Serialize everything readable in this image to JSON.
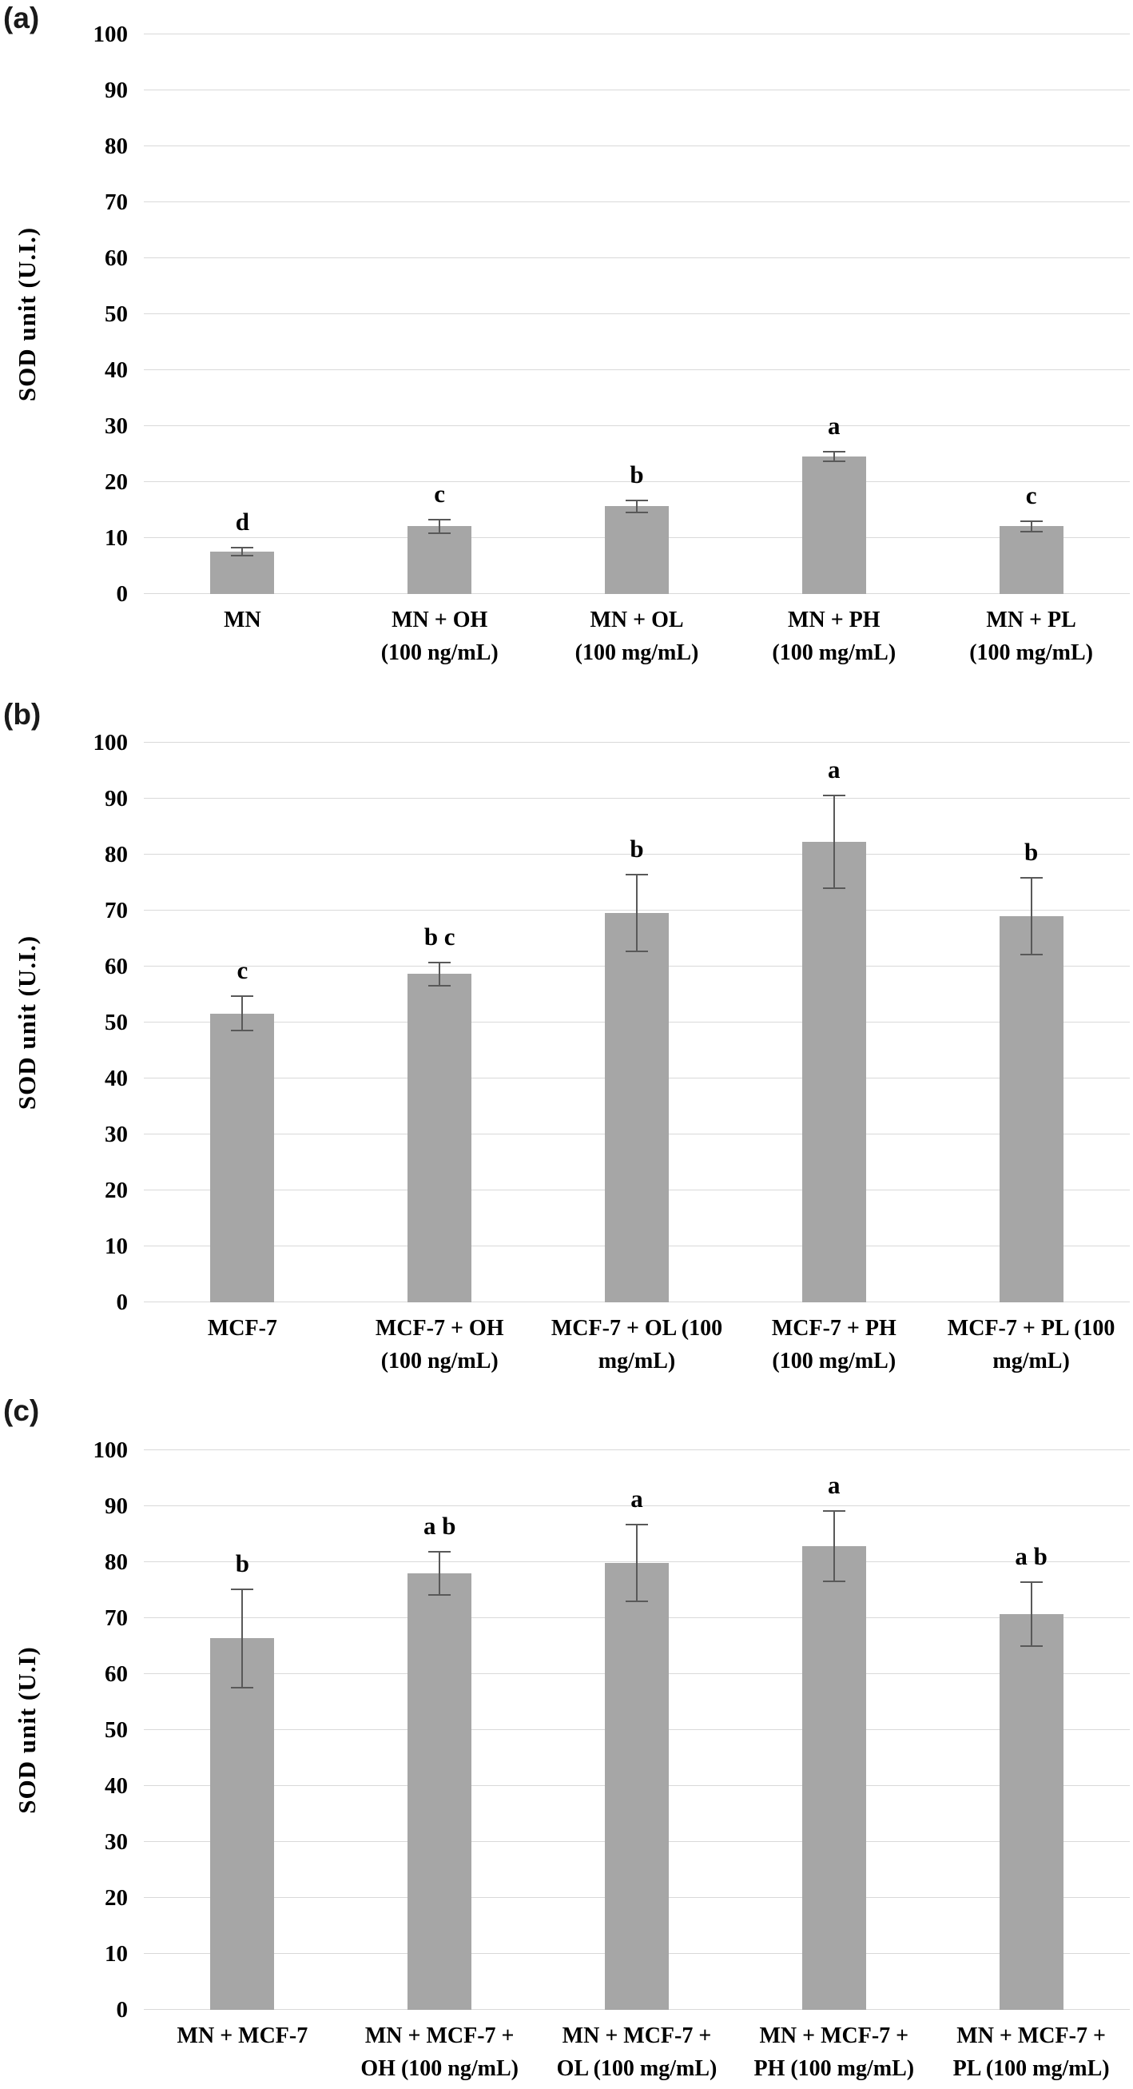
{
  "figure": {
    "panels": [
      {
        "label": "(a)",
        "ylabel": "SOD unit  (U.I.)"
      },
      {
        "label": "(b)",
        "ylabel": "SOD unit  (U.I.)"
      },
      {
        "label": "(c)",
        "ylabel": "SOD unit (U.I)"
      }
    ]
  },
  "colors": {
    "bar": "#a6a6a6",
    "gridline": "#d9d9d9",
    "baseline": "#d9d9d9",
    "error_bar": "#595959",
    "text": "#000000"
  },
  "chart_data": [
    {
      "type": "bar",
      "title": "",
      "xlabel": "",
      "ylabel": "SOD unit  (U.I.)",
      "ylim": [
        0,
        100
      ],
      "yticks": [
        0,
        10,
        20,
        30,
        40,
        50,
        60,
        70,
        80,
        90,
        100
      ],
      "grid": true,
      "legend": "none",
      "categories": [
        "MN",
        "MN + OH (100 ng/mL)",
        "MN + OL (100 mg/mL)",
        "MN + PH (100 mg/mL)",
        "MN + PL (100 mg/mL)"
      ],
      "category_lines": [
        [
          "MN"
        ],
        [
          "MN + OH",
          "(100 ng/mL)"
        ],
        [
          "MN + OL",
          "(100 mg/mL)"
        ],
        [
          "MN + PH",
          "(100 mg/mL)"
        ],
        [
          "MN + PL",
          "(100 mg/mL)"
        ]
      ],
      "values": [
        7.6,
        12.1,
        15.7,
        24.6,
        12.1
      ],
      "errors": [
        0.9,
        1.4,
        1.2,
        1.0,
        1.1
      ],
      "sig_letters": [
        "d",
        "c",
        "b",
        "a",
        "c"
      ]
    },
    {
      "type": "bar",
      "title": "",
      "xlabel": "",
      "ylabel": "SOD unit  (U.I.)",
      "ylim": [
        0,
        100
      ],
      "yticks": [
        0,
        10,
        20,
        30,
        40,
        50,
        60,
        70,
        80,
        90,
        100
      ],
      "grid": true,
      "legend": "none",
      "categories": [
        "MCF-7",
        "MCF-7 + OH (100 ng/mL)",
        "MCF-7 + OL (100 mg/mL)",
        "MCF-7 + PH (100 mg/mL)",
        "MCF-7 + PL (100 mg/mL)"
      ],
      "category_lines": [
        [
          "MCF-7"
        ],
        [
          "MCF-7 + OH",
          "(100 ng/mL)"
        ],
        [
          "MCF-7 + OL (100",
          "mg/mL)"
        ],
        [
          "MCF-7 + PH",
          "(100 mg/mL)"
        ],
        [
          "MCF-7 + PL (100",
          "mg/mL)"
        ]
      ],
      "values": [
        51.6,
        58.7,
        69.6,
        82.3,
        69.0
      ],
      "errors": [
        3.2,
        2.2,
        7.0,
        8.4,
        7.0
      ],
      "sig_letters": [
        "c",
        "b c",
        "b",
        "a",
        "b"
      ]
    },
    {
      "type": "bar",
      "title": "",
      "xlabel": "",
      "ylabel": "SOD unit (U.I)",
      "ylim": [
        0,
        100
      ],
      "yticks": [
        0,
        10,
        20,
        30,
        40,
        50,
        60,
        70,
        80,
        90,
        100
      ],
      "grid": true,
      "legend": "none",
      "categories": [
        "MN + MCF-7",
        "MN + MCF-7 + OH (100 ng/mL)",
        "MN + MCF-7 + OL (100 mg/mL)",
        "MN + MCF-7 + PH (100 mg/mL)",
        "MN + MCF-7 + PL (100 mg/mL)"
      ],
      "category_lines": [
        [
          "MN + MCF-7"
        ],
        [
          "MN + MCF-7 +",
          "OH (100 ng/mL)"
        ],
        [
          "MN + MCF-7 +",
          "OL (100 mg/mL)"
        ],
        [
          "MN + MCF-7 +",
          "PH (100 mg/mL)"
        ],
        [
          "MN + MCF-7 +",
          "PL (100 mg/mL)"
        ]
      ],
      "values": [
        66.4,
        78.0,
        79.8,
        82.9,
        70.7
      ],
      "errors": [
        8.9,
        4.0,
        7.0,
        6.4,
        5.9
      ],
      "sig_letters": [
        "b",
        "a b",
        "a",
        "a",
        "a b"
      ]
    }
  ]
}
